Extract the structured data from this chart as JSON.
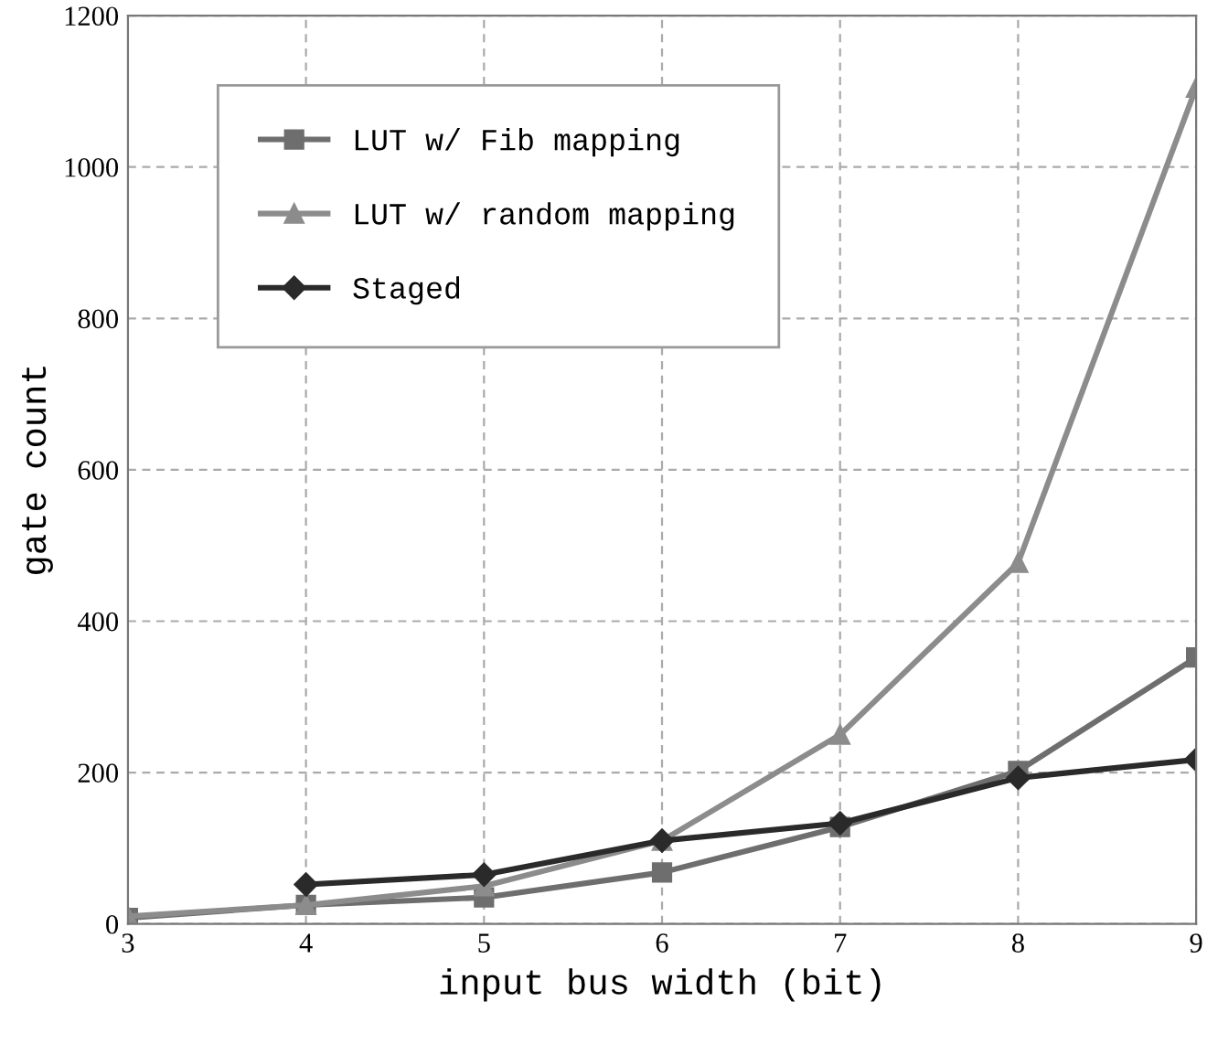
{
  "chart_data": {
    "type": "line",
    "xlabel": "input bus width (bit)",
    "ylabel": "gate count",
    "x": [
      3,
      4,
      5,
      6,
      7,
      8,
      9
    ],
    "series": [
      {
        "name": "LUT w/ Fib mapping",
        "color": "#6e6e6e",
        "marker": "square",
        "values": [
          8,
          25,
          35,
          68,
          128,
          202,
          352
        ]
      },
      {
        "name": "LUT w/ random mapping",
        "color": "#8c8c8c",
        "marker": "triangle",
        "values": [
          10,
          25,
          50,
          110,
          250,
          477,
          1105
        ]
      },
      {
        "name": "Staged",
        "color": "#2a2a2a",
        "marker": "diamond",
        "values": [
          null,
          52,
          65,
          110,
          133,
          193,
          217
        ]
      }
    ],
    "xlim": [
      3,
      9
    ],
    "xticks": [
      3,
      4,
      5,
      6,
      7,
      8,
      9
    ],
    "ylim": [
      0,
      1200
    ],
    "yticks": [
      0,
      200,
      400,
      600,
      800,
      1000,
      1200
    ],
    "grid": true,
    "legend": "top left",
    "line_style": "solid"
  }
}
